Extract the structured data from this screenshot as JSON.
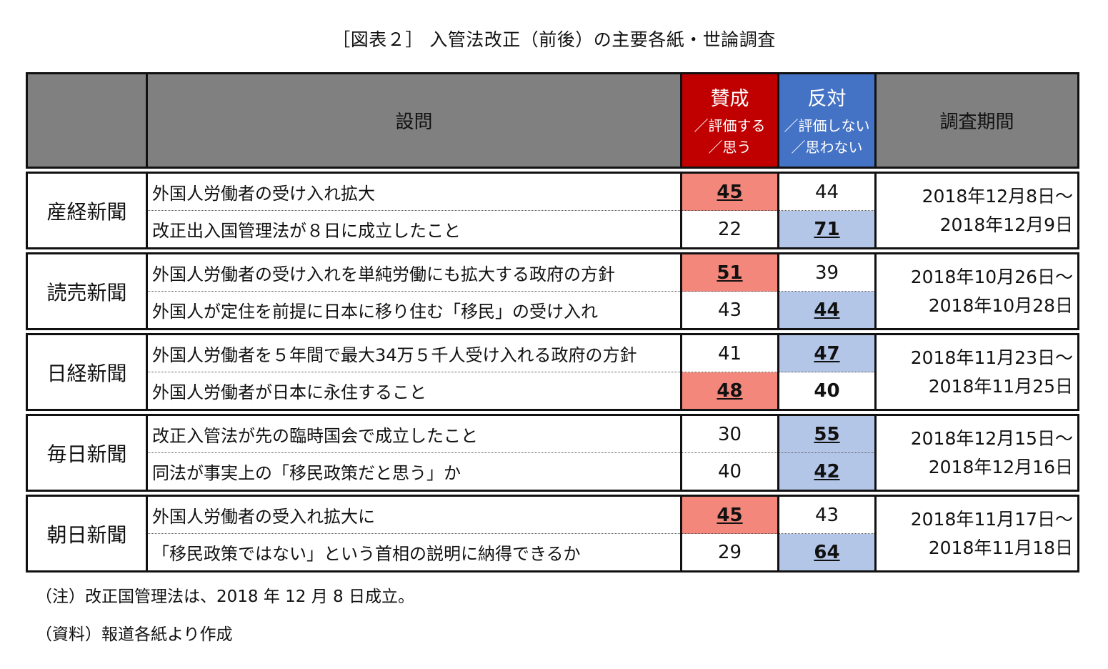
{
  "title": "［図表２］ 入管法改正（前後）の主要各紙・世論調査",
  "header": {
    "question": "設問",
    "pro_main": "賛成",
    "pro_sub1": "／評価する",
    "pro_sub2": "／思う",
    "con_main": "反対",
    "con_sub1": "／評価しない",
    "con_sub2": "／思わない",
    "period": "調査期間"
  },
  "colors": {
    "pro_header": "#c00000",
    "con_header": "#4472c4",
    "pro_highlight": "#f4877c",
    "con_highlight": "#b4c6e7",
    "header_bg": "#808080"
  },
  "groups": [
    {
      "paper": "産経新聞",
      "period_start": "2018年12月8日～",
      "period_end": "2018年12月9日",
      "rows": [
        {
          "question": "外国人労働者の受け入れ拡大",
          "pro": "45",
          "con": "44",
          "highlight": "pro"
        },
        {
          "question": "改正出入国管理法が８日に成立したこと",
          "pro": "22",
          "con": "71",
          "highlight": "con"
        }
      ]
    },
    {
      "paper": "読売新聞",
      "period_start": "2018年10月26日～",
      "period_end": "2018年10月28日",
      "rows": [
        {
          "question": "外国人労働者の受け入れを単純労働にも拡大する政府の方針",
          "pro": "51",
          "con": "39",
          "highlight": "pro"
        },
        {
          "question": "外国人が定住を前提に日本に移り住む「移民」の受け入れ",
          "pro": "43",
          "con": "44",
          "highlight": "con"
        }
      ]
    },
    {
      "paper": "日経新聞",
      "period_start": "2018年11月23日～",
      "period_end": "2018年11月25日",
      "rows": [
        {
          "question": "外国人労働者を５年間で最大34万５千人受け入れる政府の方針",
          "pro": "41",
          "con": "47",
          "highlight": "con"
        },
        {
          "question": "外国人労働者が日本に永住すること",
          "pro": "48",
          "con": "40",
          "highlight": "pro"
        }
      ]
    },
    {
      "paper": "毎日新聞",
      "period_start": "2018年12月15日～",
      "period_end": "2018年12月16日",
      "rows": [
        {
          "question": "改正入管法が先の臨時国会で成立したこと",
          "pro": "30",
          "con": "55",
          "highlight": "con"
        },
        {
          "question": "同法が事実上の「移民政策だと思う」か",
          "pro": "40",
          "con": "42",
          "highlight": "con"
        }
      ]
    },
    {
      "paper": "朝日新聞",
      "period_start": "2018年11月17日～",
      "period_end": "2018年11月18日",
      "rows": [
        {
          "question": "外国人労働者の受入れ拡大に",
          "pro": "45",
          "con": "43",
          "highlight": "pro"
        },
        {
          "question": "「移民政策ではない」という首相の説明に納得できるか",
          "pro": "29",
          "con": "64",
          "highlight": "con"
        }
      ]
    }
  ],
  "notes": {
    "note1": "（注）改正国管理法は、2018 年 12 月 8 日成立。",
    "note2": "（資料）報道各紙より作成"
  }
}
